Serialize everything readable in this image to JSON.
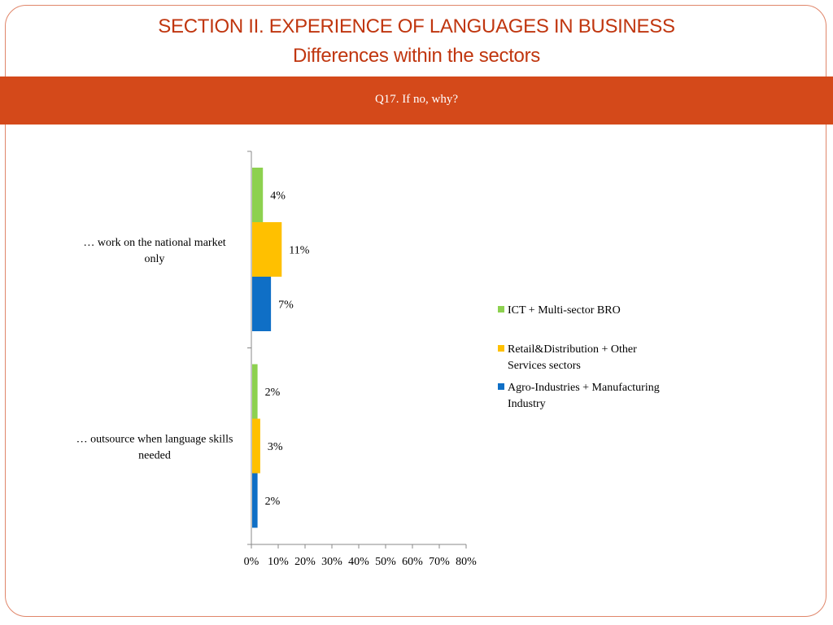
{
  "slide": {
    "title": "SECTION II. EXPERIENCE OF LANGUAGES IN BUSINESS",
    "subtitle": "Differences within the sectors",
    "question": "Q17. If no, why?"
  },
  "colors": {
    "title": "#c0360f",
    "banner": "#d4491a",
    "frame": "#e0866a"
  },
  "chart_data": {
    "type": "bar",
    "orientation": "horizontal",
    "categories": [
      "… work on the national market only",
      "… outsource when language skills needed"
    ],
    "series": [
      {
        "name": "ICT + Multi-sector BRO",
        "color": "#8dd14f",
        "values": [
          4,
          2
        ],
        "labels": [
          "4%",
          "2%"
        ]
      },
      {
        "name": "Retail&Distribution + Other Services sectors",
        "color": "#ffc000",
        "values": [
          11,
          3
        ],
        "labels": [
          "11%",
          "3%"
        ]
      },
      {
        "name": "Agro-Industries + Manufacturing Industry",
        "color": "#0f6fc6",
        "values": [
          7,
          2
        ],
        "labels": [
          "7%",
          "2%"
        ]
      }
    ],
    "xlim": [
      0,
      80
    ],
    "xticks": [
      "0%",
      "10%",
      "20%",
      "30%",
      "40%",
      "50%",
      "60%",
      "70%",
      "80%"
    ],
    "xlabel": "",
    "ylabel": "",
    "legend_position": "right",
    "grid": false
  }
}
